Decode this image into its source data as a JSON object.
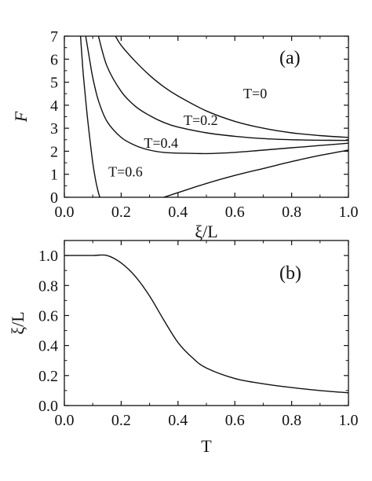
{
  "chart_data": [
    {
      "type": "line",
      "panel_label": "(a)",
      "xlabel": "ξ/L",
      "ylabel": "F",
      "xlim": [
        0.0,
        1.0
      ],
      "ylim": [
        0,
        7
      ],
      "xticks": [
        "0.0",
        "0.2",
        "0.4",
        "0.6",
        "0.8",
        "1.0"
      ],
      "yticks": [
        "0",
        "1",
        "2",
        "3",
        "4",
        "5",
        "6",
        "7"
      ],
      "grid": false,
      "series": [
        {
          "name": "T=0",
          "x": [
            0.18,
            0.2,
            0.25,
            0.3,
            0.35,
            0.4,
            0.5,
            0.6,
            0.7,
            0.8,
            0.9,
            1.0
          ],
          "y": [
            7.0,
            6.6,
            5.9,
            5.3,
            4.8,
            4.4,
            3.75,
            3.3,
            3.0,
            2.8,
            2.68,
            2.6
          ]
        },
        {
          "name": "T=0.2",
          "x": [
            0.12,
            0.15,
            0.2,
            0.25,
            0.3,
            0.35,
            0.4,
            0.5,
            0.6,
            0.7,
            0.8,
            0.9,
            1.0
          ],
          "y": [
            7.0,
            5.7,
            4.6,
            3.95,
            3.55,
            3.25,
            3.05,
            2.8,
            2.65,
            2.55,
            2.5,
            2.48,
            2.47
          ]
        },
        {
          "name": "T=0.4",
          "x": [
            0.075,
            0.09,
            0.1,
            0.12,
            0.15,
            0.2,
            0.25,
            0.3,
            0.35,
            0.4,
            0.5,
            0.6,
            0.7,
            0.8,
            0.9,
            1.0
          ],
          "y": [
            7.0,
            5.9,
            5.2,
            4.2,
            3.3,
            2.6,
            2.25,
            2.05,
            1.95,
            1.92,
            1.9,
            1.95,
            2.05,
            2.15,
            2.25,
            2.35
          ]
        },
        {
          "name": "T=0.6",
          "x": [
            0.057,
            0.065,
            0.07,
            0.08,
            0.09,
            0.1,
            0.11,
            0.12,
            0.125
          ],
          "y": [
            7.0,
            5.6,
            4.9,
            3.6,
            2.5,
            1.5,
            0.75,
            0.2,
            0.0
          ]
        },
        {
          "name": "",
          "x": [
            0.35,
            0.4,
            0.5,
            0.6,
            0.7,
            0.8,
            0.9,
            1.0
          ],
          "y": [
            0.0,
            0.2,
            0.6,
            0.95,
            1.25,
            1.55,
            1.82,
            2.05
          ]
        }
      ],
      "annotations": [
        {
          "text": "T=0",
          "x": 0.63,
          "y": 4.3
        },
        {
          "text": "T=0.2",
          "x": 0.42,
          "y": 3.15
        },
        {
          "text": "T=0.4",
          "x": 0.28,
          "y": 2.15
        },
        {
          "text": "T=0.6",
          "x": 0.155,
          "y": 0.9
        }
      ]
    },
    {
      "type": "line",
      "panel_label": "(b)",
      "xlabel": "T",
      "ylabel": "ξ/L",
      "xlim": [
        0.0,
        1.0
      ],
      "ylim": [
        0.0,
        1.1
      ],
      "xticks": [
        "0.0",
        "0.2",
        "0.4",
        "0.6",
        "0.8",
        "1.0"
      ],
      "yticks": [
        "0.0",
        "0.2",
        "0.4",
        "0.6",
        "0.8",
        "1.0"
      ],
      "grid": false,
      "series": [
        {
          "name": "",
          "x": [
            0.0,
            0.05,
            0.1,
            0.15,
            0.2,
            0.25,
            0.3,
            0.35,
            0.4,
            0.45,
            0.5,
            0.6,
            0.7,
            0.8,
            0.9,
            1.0
          ],
          "y": [
            1.0,
            1.0,
            1.0,
            1.0,
            0.95,
            0.86,
            0.73,
            0.57,
            0.42,
            0.32,
            0.25,
            0.18,
            0.145,
            0.12,
            0.1,
            0.085
          ]
        }
      ]
    }
  ]
}
